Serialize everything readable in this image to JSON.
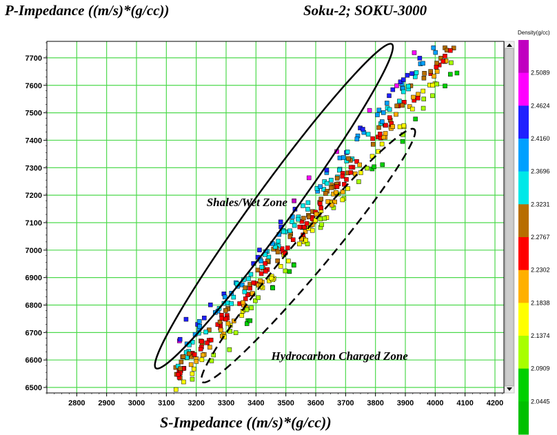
{
  "chart_data": {
    "type": "scatter",
    "title": "Soku-2;   SOKU-3000",
    "xlabel": "S-Impedance ((m/s)*(g/cc))",
    "ylabel": "P-Impedance ((m/s)*(g/cc))",
    "xlim": [
      2700,
      4230
    ],
    "ylim": [
      6480,
      7760
    ],
    "xticks": [
      2800,
      2900,
      3000,
      3100,
      3200,
      3300,
      3400,
      3500,
      3600,
      3700,
      3800,
      3900,
      4000,
      4100,
      4200
    ],
    "yticks": [
      6500,
      6600,
      6700,
      6800,
      6900,
      7000,
      7100,
      7200,
      7300,
      7400,
      7500,
      7600,
      7700
    ],
    "grid": true,
    "colorbar": {
      "title": "Density(g/cc)",
      "labels": [
        "2.5089",
        "2.4624",
        "2.4160",
        "2.3696",
        "2.3231",
        "2.2767",
        "2.2302",
        "2.1838",
        "2.1374",
        "2.0909",
        "2.0445"
      ],
      "colors": [
        "#c000c0",
        "#ff00ff",
        "#2020ff",
        "#00a0ff",
        "#00e8e8",
        "#b86e00",
        "#ff0000",
        "#ffb000",
        "#ffff00",
        "#a8ff00",
        "#00d000",
        "#00c000"
      ],
      "range": [
        2.0,
        2.55
      ]
    },
    "annotations": [
      {
        "text": "Shales/Wet Zone",
        "x": 3370,
        "y": 7160
      },
      {
        "text": "Hydrocarbon Charged Zone",
        "x": 3680,
        "y": 6600
      }
    ],
    "zones": [
      {
        "label": "Shales/Wet Zone",
        "style": "solid",
        "center": [
          3460,
          7160
        ],
        "axis_end_a": [
          3065,
          6570
        ],
        "axis_end_b": [
          3855,
          7750
        ],
        "semi_minor": 65
      },
      {
        "label": "Hydrocarbon Charged Zone",
        "style": "dashed",
        "center": [
          3570,
          6980
        ],
        "axis_end_a": [
          3220,
          6520
        ],
        "axis_end_b": [
          3930,
          7440
        ],
        "semi_minor": 60
      }
    ],
    "series": [
      {
        "pattern": "cloud",
        "count": 420,
        "x_range": [
          3130,
          4080
        ],
        "trend_y_at_x_min": 6540,
        "trend_slope": 1.3,
        "scatter": 55,
        "density_low": 2.06,
        "density_high": 2.48
      }
    ]
  }
}
